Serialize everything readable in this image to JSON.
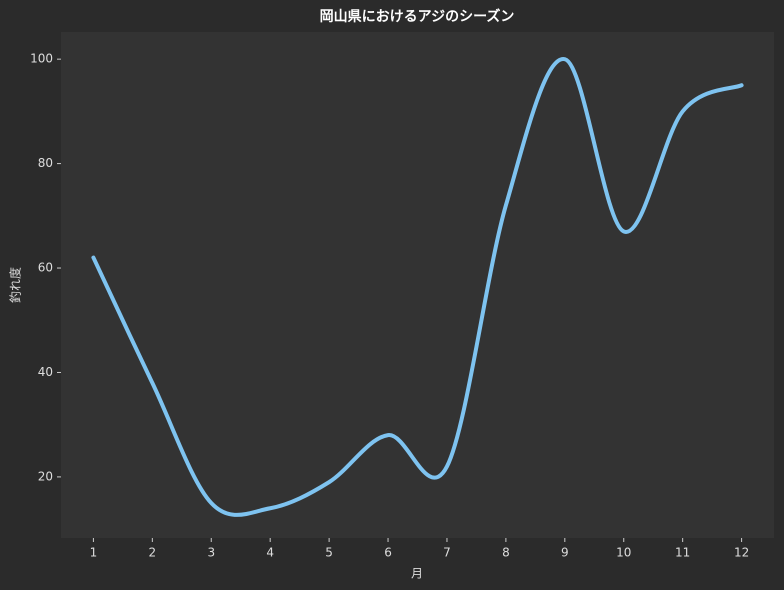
{
  "chart_data": {
    "type": "line",
    "title": "岡山県におけるアジのシーズン",
    "x_label": "月",
    "y_label": "釣れ度",
    "x": [
      1,
      2,
      3,
      4,
      5,
      6,
      7,
      8,
      9,
      10,
      11,
      12
    ],
    "series": [
      {
        "name": "釣れ度",
        "color": "#7ec3f0",
        "values": [
          62,
          38,
          15,
          14,
          19,
          28,
          22,
          72,
          100,
          67,
          90,
          95
        ]
      }
    ],
    "xlim": [
      0.45,
      12.55
    ],
    "ylim": [
      8.3,
      105.2
    ],
    "xticks": [
      1,
      2,
      3,
      4,
      5,
      6,
      7,
      8,
      9,
      10,
      11,
      12
    ],
    "yticks": [
      20,
      40,
      60,
      80,
      100
    ],
    "grid": false
  }
}
